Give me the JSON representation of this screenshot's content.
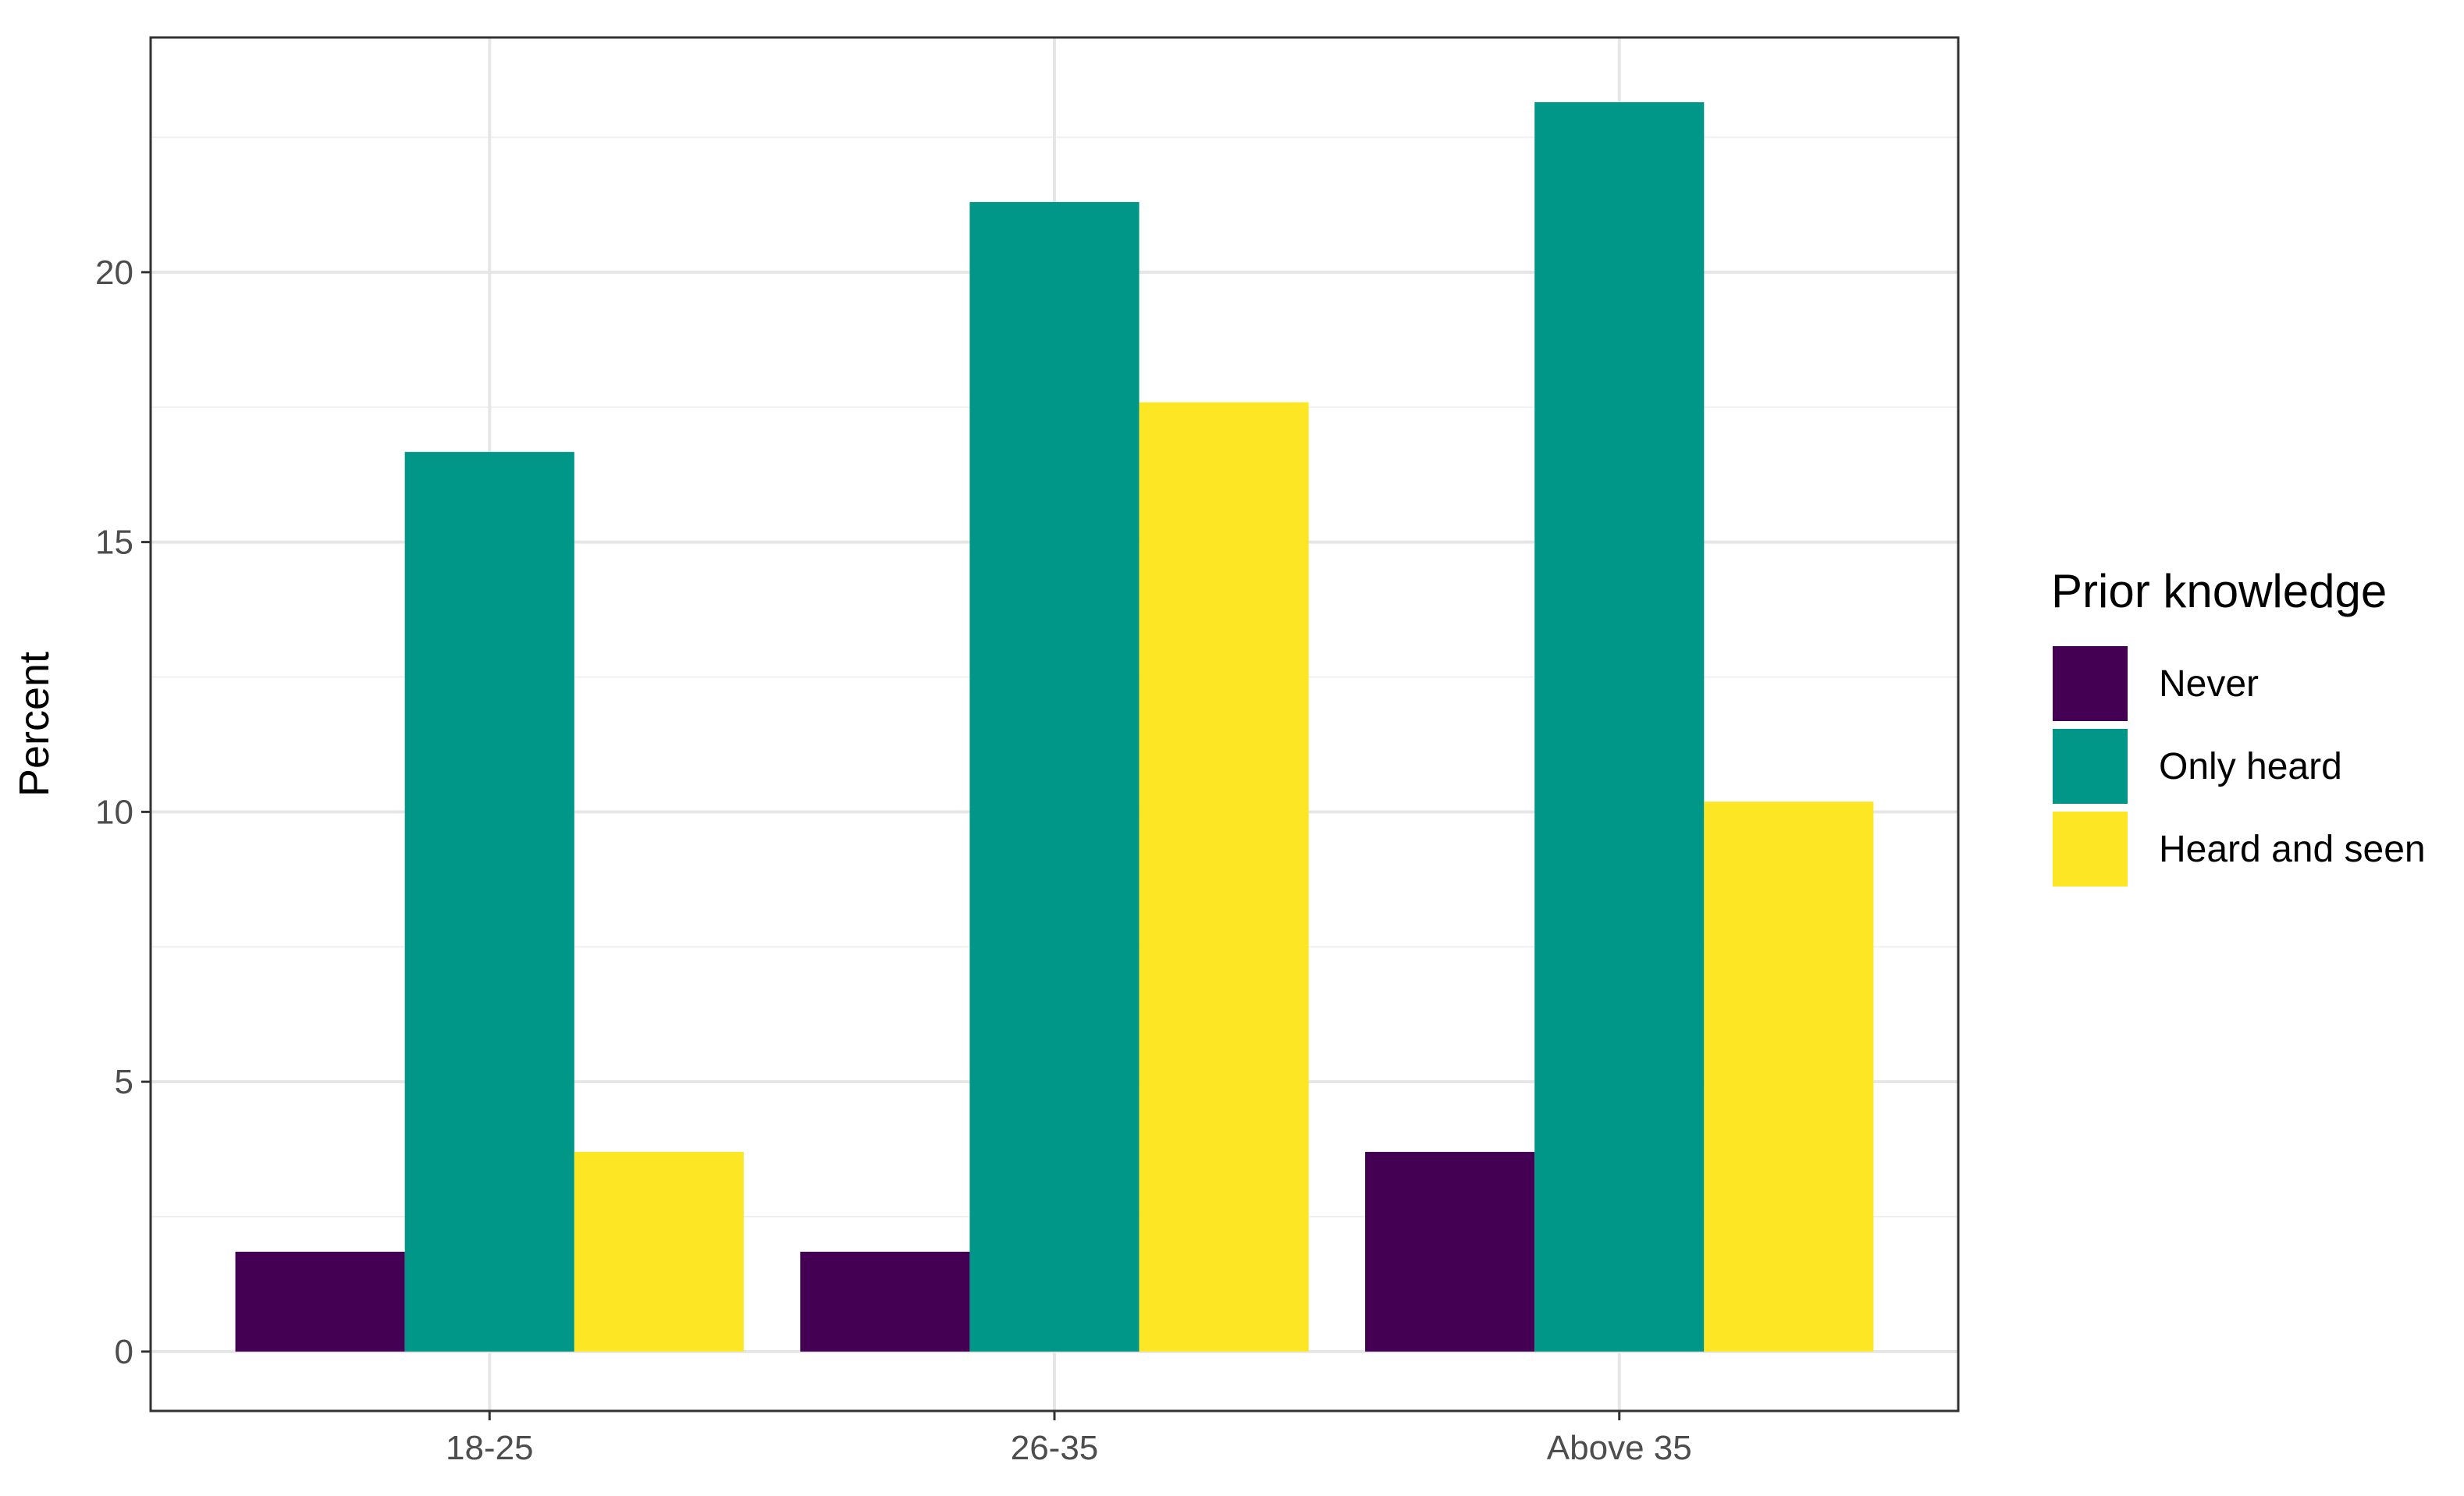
{
  "chart_data": {
    "type": "bar",
    "categories": [
      "18-25",
      "26-35",
      "Above 35"
    ],
    "series": [
      {
        "name": "Never",
        "color": "#440154",
        "values": [
          1.85,
          1.85,
          3.7
        ]
      },
      {
        "name": "Only heard",
        "color": "#009688",
        "values": [
          16.67,
          21.3,
          23.15
        ]
      },
      {
        "name": "Heard and seen",
        "color": "#FDE725",
        "values": [
          3.7,
          17.59,
          10.19
        ]
      }
    ],
    "xlabel": "",
    "ylabel": "Percent",
    "ylim": [
      -1.1,
      24.35
    ],
    "yticks": [
      0,
      5,
      10,
      15,
      20
    ],
    "grid": true,
    "legend": {
      "title": "Prior knowledge",
      "position": "right"
    }
  }
}
